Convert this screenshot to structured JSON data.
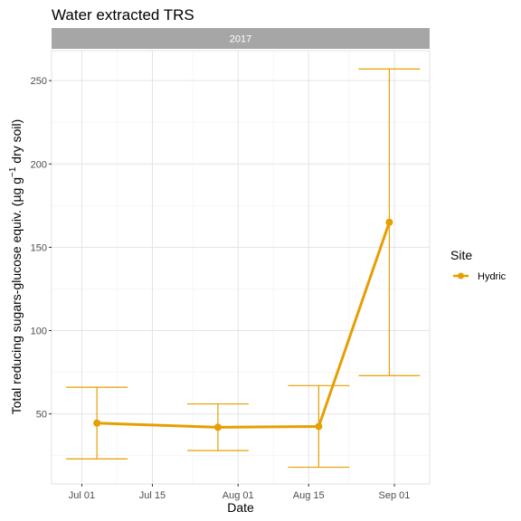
{
  "chart_data": {
    "type": "line",
    "title": "Water extracted TRS",
    "facet_strip": "2017",
    "xlabel": "Date",
    "ylabel": "Total reducing sugars-glucose equiv. (µg g",
    "ylabel_superscript": "−1",
    "ylabel_suffix": " dry soil)",
    "x_ticks": [
      "Jul 01",
      "Jul 15",
      "Aug 01",
      "Aug 15",
      "Sep 01"
    ],
    "x_tick_dates": [
      "2017-07-01",
      "2017-07-15",
      "2017-08-01",
      "2017-08-15",
      "2017-09-01"
    ],
    "xlim": [
      "2017-06-25",
      "2017-09-08"
    ],
    "y_ticks": [
      50,
      100,
      150,
      200,
      250
    ],
    "ylim": [
      8,
      268
    ],
    "grid": true,
    "legend": {
      "title": "Site",
      "position": "right"
    },
    "series": [
      {
        "name": "Hydric",
        "color": "#E69F00",
        "points": [
          {
            "x": "2017-07-04",
            "y": 44.5,
            "ymin": 23,
            "ymax": 66
          },
          {
            "x": "2017-07-28",
            "y": 42,
            "ymin": 28,
            "ymax": 56
          },
          {
            "x": "2017-08-17",
            "y": 42.5,
            "ymin": 18,
            "ymax": 67
          },
          {
            "x": "2017-08-31",
            "y": 165,
            "ymin": 73,
            "ymax": 257
          }
        ]
      }
    ]
  }
}
